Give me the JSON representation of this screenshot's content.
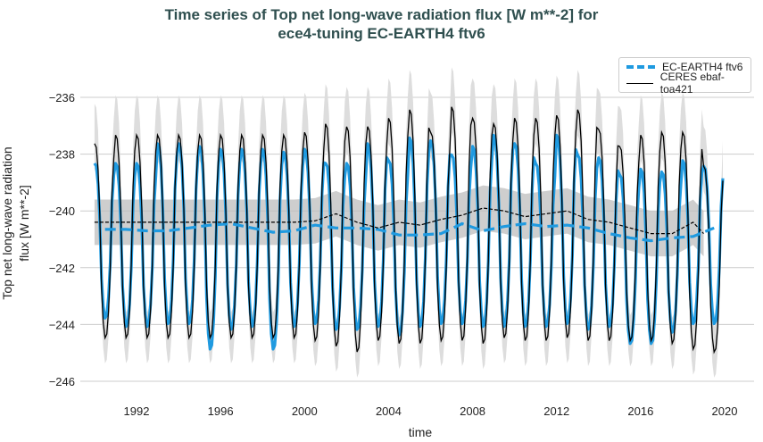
{
  "chart_data": {
    "type": "line",
    "title_line1": "Time series of Top net long-wave radiation flux [W m**-2] for",
    "title_line2": "ece4-tuning EC-EARTH4 ftv6",
    "xlabel": "time",
    "ylabel_line1": "Top net long-wave radiation",
    "ylabel_line2": "flux [W m**-2]",
    "xlim": [
      1989.3,
      2021.5
    ],
    "ylim": [
      -246.4,
      -234.9
    ],
    "xticks": [
      "1992",
      "1996",
      "2000",
      "2004",
      "2008",
      "2012",
      "2016",
      "2020"
    ],
    "yticks": [
      "−236",
      "−238",
      "−240",
      "−242",
      "−244",
      "−246"
    ],
    "grid": "horizontal",
    "legend_position": "top-right",
    "years": [
      1990,
      1991,
      1992,
      1993,
      1994,
      1995,
      1996,
      1997,
      1998,
      1999,
      2000,
      2001,
      2002,
      2003,
      2004,
      2005,
      2006,
      2007,
      2008,
      2009,
      2010,
      2011,
      2012,
      2013,
      2014,
      2015,
      2016,
      2017,
      2018,
      2019
    ],
    "series": [
      {
        "name": "EC-EARTH4 ftv6",
        "color": "#1f9ae0",
        "style": "monthly solid, annual mean dashed",
        "yearly_max": [
          -238.3,
          -238.3,
          -238.3,
          -237.6,
          -237.6,
          -237.7,
          -237.8,
          -237.8,
          -237.8,
          -237.9,
          -237.8,
          -238.3,
          -238.3,
          -237.6,
          -238.2,
          -237.4,
          -237.5,
          -238.0,
          -237.7,
          -237.3,
          -237.6,
          -238.3,
          -237.3,
          -238.0,
          -238.1,
          -238.7,
          -238.5,
          -238.6,
          -238.2,
          -238.4
        ],
        "yearly_min": [
          -243.8,
          -244.1,
          -244.1,
          -244.0,
          -244.0,
          -244.9,
          -244.2,
          -244.1,
          -244.9,
          -244.1,
          -244.0,
          -244.2,
          -244.2,
          -244.1,
          -244.4,
          -244.1,
          -244.0,
          -244.0,
          -244.1,
          -244.1,
          -244.1,
          -244.1,
          -244.0,
          -244.2,
          -244.1,
          -244.7,
          -244.7,
          -244.3,
          -244.0,
          -244.0
        ],
        "annual_mean": [
          -240.65,
          -240.65,
          -240.7,
          -240.7,
          -240.6,
          -240.5,
          -240.45,
          -240.6,
          -240.75,
          -240.7,
          -240.5,
          -240.6,
          -240.6,
          -240.65,
          -240.85,
          -240.85,
          -240.8,
          -240.45,
          -240.7,
          -240.55,
          -240.45,
          -240.55,
          -240.5,
          -240.6,
          -240.8,
          -240.95,
          -241.05,
          -240.95,
          -240.9,
          -240.6
        ]
      },
      {
        "name": "CERES ebaf-toa421",
        "color": "#000000",
        "style": "monthly solid, annual mean dashed with grey spread band",
        "yearly_max": [
          -237.6,
          -237.3,
          -237.3,
          -237.3,
          -237.3,
          -237.3,
          -237.3,
          -237.3,
          -237.3,
          -237.3,
          -237.2,
          -236.9,
          -237.0,
          -237.0,
          -236.7,
          -236.4,
          -237.2,
          -236.3,
          -236.7,
          -236.9,
          -236.7,
          -236.7,
          -236.6,
          -236.4,
          -237.1,
          -237.7,
          -237.3,
          -237.2,
          -237.2,
          -238.4
        ],
        "yearly_min": [
          -244.5,
          -244.5,
          -244.5,
          -244.5,
          -244.5,
          -244.5,
          -244.5,
          -244.5,
          -244.5,
          -244.5,
          -244.6,
          -244.8,
          -245.0,
          -244.6,
          -244.7,
          -244.7,
          -244.6,
          -244.6,
          -244.7,
          -244.5,
          -244.6,
          -244.6,
          -244.5,
          -244.6,
          -244.6,
          -244.6,
          -244.6,
          -244.7,
          -244.9,
          -245.0
        ],
        "annual_mean": [
          -240.4,
          -240.4,
          -240.4,
          -240.4,
          -240.4,
          -240.4,
          -240.4,
          -240.4,
          -240.4,
          -240.4,
          -240.35,
          -240.1,
          -240.4,
          -240.6,
          -240.4,
          -240.5,
          -240.3,
          -240.15,
          -239.9,
          -240.0,
          -240.2,
          -240.1,
          -240.0,
          -240.3,
          -240.4,
          -240.6,
          -240.8,
          -240.8,
          -240.4,
          -240.8
        ],
        "spread": 0.8
      }
    ]
  }
}
